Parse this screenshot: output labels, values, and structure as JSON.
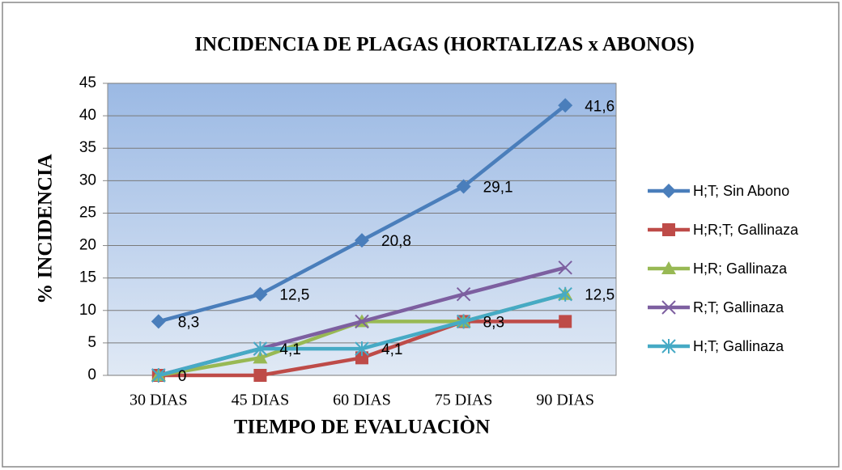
{
  "chart_data": {
    "type": "line",
    "title": "INCIDENCIA DE PLAGAS (HORTALIZAS x  ABONOS)",
    "x_label": "TIEMPO DE EVALUACIÒN",
    "y_label": "% INCIDENCIA",
    "categories": [
      "30 DIAS",
      "45 DIAS",
      "60 DIAS",
      "75 DIAS",
      "90 DIAS"
    ],
    "ylim": [
      0,
      45
    ],
    "yticks": [
      0,
      5,
      10,
      15,
      20,
      25,
      30,
      35,
      40,
      45
    ],
    "grid": true,
    "legend": "right",
    "series": [
      {
        "name": "H;T; Sin Abono",
        "color": "#4a7ebb",
        "marker": "diamond",
        "values": [
          8.3,
          12.5,
          20.8,
          29.1,
          41.6
        ],
        "value_labels": [
          "8,3",
          "12,5",
          "20,8",
          "29,1",
          "41,6"
        ]
      },
      {
        "name": "H;R;T; Gallinaza",
        "color": "#be4b48",
        "marker": "square",
        "values": [
          0,
          0,
          2.7,
          8.3,
          8.3
        ]
      },
      {
        "name": "H;R; Gallinaza",
        "color": "#98b954",
        "marker": "triangle",
        "values": [
          0,
          2.7,
          8.3,
          8.3,
          12.5
        ]
      },
      {
        "name": "R;T; Gallinaza",
        "color": "#7d5fa0",
        "marker": "x",
        "values": [
          0,
          4.1,
          8.3,
          12.5,
          16.6
        ]
      },
      {
        "name": "H;T; Gallinaza",
        "color": "#46aac5",
        "marker": "star",
        "values": [
          0,
          4.1,
          4.1,
          8.3,
          12.5
        ],
        "value_labels": [
          "0",
          "4,1",
          "4,1",
          "8,3",
          "12,5"
        ]
      }
    ]
  }
}
